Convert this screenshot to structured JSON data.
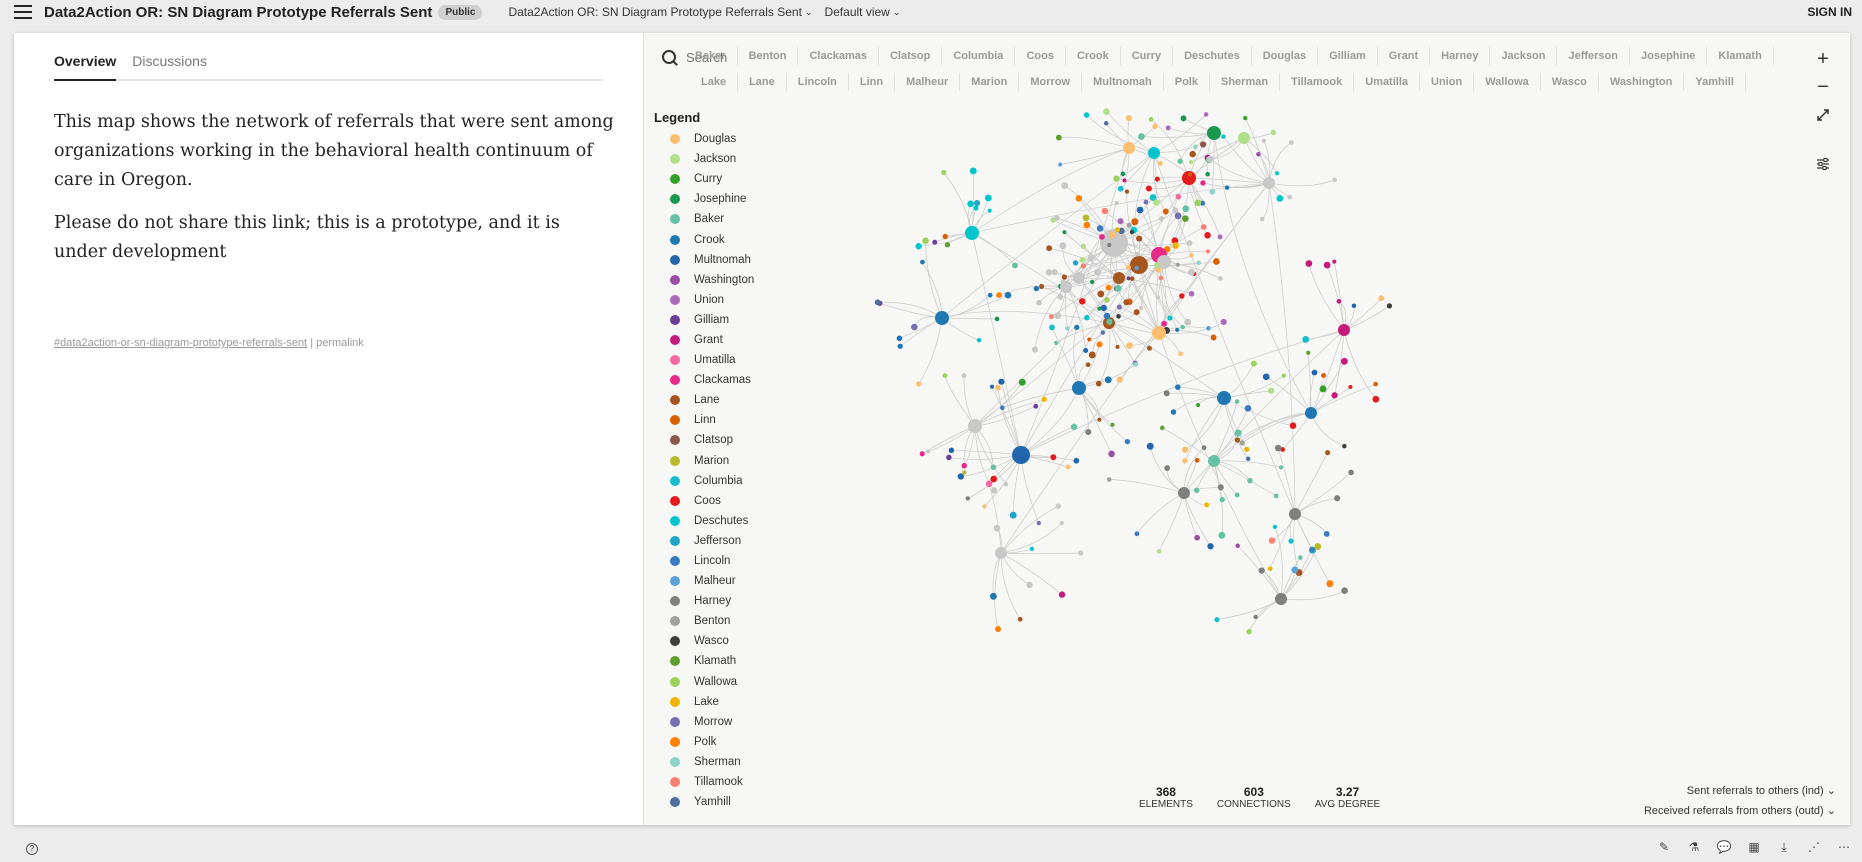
{
  "header": {
    "app_title": "Data2Action OR: SN Diagram Prototype Referrals Sent",
    "visibility_badge": "Public",
    "map_selector": "Data2Action OR: SN Diagram Prototype Referrals Sent",
    "view_selector": "Default view",
    "signin_label": "SIGN IN"
  },
  "sidebar": {
    "tabs": [
      {
        "label": "Overview"
      },
      {
        "label": "Discussions"
      }
    ],
    "paragraphs": [
      "This map shows the network of referrals that were sent among organizations working in the behavioral health continuum of care in Oregon.",
      "Please do not share this link; this is a prototype, and it is under development"
    ],
    "tag_link": "#data2action-or-sn-diagram-prototype-referrals-sent",
    "separator": "|",
    "permalink": "permalink"
  },
  "map": {
    "search_placeholder": "Search",
    "filter_row1": [
      "Baker",
      "Benton",
      "Clackamas",
      "Clatsop",
      "Columbia",
      "Coos",
      "Crook",
      "Curry",
      "Deschutes",
      "Douglas",
      "Gilliam",
      "Grant",
      "Harney",
      "Jackson",
      "Jefferson",
      "Josephine",
      "Klamath"
    ],
    "filter_row2": [
      "Lake",
      "Lane",
      "Lincoln",
      "Linn",
      "Malheur",
      "Marion",
      "Morrow",
      "Multnomah",
      "Polk",
      "Sherman",
      "Tillamook",
      "Umatilla",
      "Union",
      "Wallowa",
      "Wasco",
      "Washington",
      "Yamhill"
    ],
    "legend_title": "Legend",
    "legend": [
      {
        "label": "Douglas",
        "color": "#fdbf6f"
      },
      {
        "label": "Jackson",
        "color": "#b2df8a"
      },
      {
        "label": "Curry",
        "color": "#33a02c"
      },
      {
        "label": "Josephine",
        "color": "#1a9850"
      },
      {
        "label": "Baker",
        "color": "#66c2a5"
      },
      {
        "label": "Crook",
        "color": "#1f78b4"
      },
      {
        "label": "Multnomah",
        "color": "#2166ac"
      },
      {
        "label": "Washington",
        "color": "#984ea3"
      },
      {
        "label": "Union",
        "color": "#a96bb8"
      },
      {
        "label": "Gilliam",
        "color": "#6a3d9a"
      },
      {
        "label": "Grant",
        "color": "#c51b7d"
      },
      {
        "label": "Umatilla",
        "color": "#f768a1"
      },
      {
        "label": "Clackamas",
        "color": "#e7298a"
      },
      {
        "label": "Lane",
        "color": "#a6561d"
      },
      {
        "label": "Linn",
        "color": "#d95f02"
      },
      {
        "label": "Clatsop",
        "color": "#8c564b"
      },
      {
        "label": "Marion",
        "color": "#b8b82c"
      },
      {
        "label": "Columbia",
        "color": "#17becf"
      },
      {
        "label": "Coos",
        "color": "#e41a1c"
      },
      {
        "label": "Deschutes",
        "color": "#00c5cd"
      },
      {
        "label": "Jefferson",
        "color": "#1fa5c9"
      },
      {
        "label": "Lincoln",
        "color": "#3a7bbf"
      },
      {
        "label": "Malheur",
        "color": "#5aa0d9"
      },
      {
        "label": "Harney",
        "color": "#7f7f7f"
      },
      {
        "label": "Benton",
        "color": "#a0a0a0"
      },
      {
        "label": "Wasco",
        "color": "#3d3d3d"
      },
      {
        "label": "Klamath",
        "color": "#5ca02c"
      },
      {
        "label": "Wallowa",
        "color": "#9ad25a"
      },
      {
        "label": "Lake",
        "color": "#f0b400"
      },
      {
        "label": "Morrow",
        "color": "#7570b3"
      },
      {
        "label": "Polk",
        "color": "#ff7f00"
      },
      {
        "label": "Sherman",
        "color": "#8dd3c7"
      },
      {
        "label": "Tillamook",
        "color": "#fb8072"
      },
      {
        "label": "Yamhill",
        "color": "#4e6e9e"
      }
    ],
    "zoom_in": "+",
    "zoom_out": "−",
    "stats": [
      {
        "value": "368",
        "label": "ELEMENTS"
      },
      {
        "value": "603",
        "label": "CONNECTIONS"
      },
      {
        "value": "3.27",
        "label": "AVG DEGREE"
      }
    ],
    "size_options": [
      "Sent referrals to others (ind)",
      "Received referrals from others (outd)"
    ]
  },
  "footer": {
    "help": "?"
  }
}
